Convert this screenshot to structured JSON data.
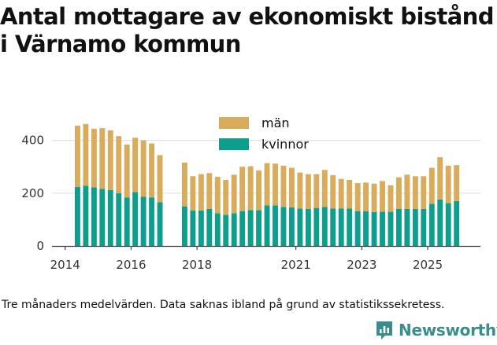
{
  "title": {
    "line1": "Antal mottagare av ekonomiskt bistånd",
    "line2": "i Värnamo kommun"
  },
  "caption": "Tre månaders medelvärden. Data saknas ibland på grund av statistikssekretess.",
  "brand": {
    "name": "Newsworthy"
  },
  "colors": {
    "man": "#d8ac5a",
    "kvinnor": "#0e9e8e",
    "grid": "#e3e3e3",
    "brand": "#3a8d8b"
  },
  "chart_data": {
    "type": "bar",
    "stacked": true,
    "title": "Antal mottagare av ekonomiskt bistånd i Värnamo kommun",
    "x_unit": "year (quarterly bars)",
    "xlim": [
      2013.6,
      2026.6
    ],
    "ylim": [
      0,
      500
    ],
    "y_ticks": [
      0,
      200,
      400
    ],
    "x_ticks": [
      "2014",
      "2016",
      "2018",
      "2021",
      "2023",
      "2025"
    ],
    "x_tick_positions": [
      2014,
      2016,
      2018,
      2021,
      2023,
      2025
    ],
    "legend_position": "top-center",
    "series": [
      {
        "name": "kvinnor",
        "color": "#0e9e8e",
        "x": [
          2014.375,
          2014.625,
          2014.875,
          2015.125,
          2015.375,
          2015.625,
          2015.875,
          2016.125,
          2016.375,
          2016.625,
          2016.875,
          2017.625,
          2017.875,
          2018.125,
          2018.375,
          2018.625,
          2018.875,
          2019.125,
          2019.375,
          2019.625,
          2019.875,
          2020.125,
          2020.375,
          2020.625,
          2020.875,
          2021.125,
          2021.375,
          2021.625,
          2021.875,
          2022.125,
          2022.375,
          2022.625,
          2022.875,
          2023.125,
          2023.375,
          2023.625,
          2023.875,
          2024.125,
          2024.375,
          2024.625,
          2024.875,
          2025.125,
          2025.375,
          2025.625,
          2025.875
        ],
        "values": [
          224,
          228,
          222,
          216,
          212,
          200,
          184,
          204,
          186,
          184,
          166,
          150,
          134,
          134,
          140,
          124,
          118,
          124,
          132,
          136,
          136,
          154,
          154,
          148,
          146,
          142,
          140,
          144,
          148,
          142,
          142,
          142,
          132,
          132,
          128,
          130,
          130,
          140,
          140,
          140,
          140,
          160,
          176,
          162,
          170
        ]
      },
      {
        "name": "män",
        "color": "#d8ac5a",
        "x": [
          2014.375,
          2014.625,
          2014.875,
          2015.125,
          2015.375,
          2015.625,
          2015.875,
          2016.125,
          2016.375,
          2016.625,
          2016.875,
          2017.625,
          2017.875,
          2018.125,
          2018.375,
          2018.625,
          2018.875,
          2019.125,
          2019.375,
          2019.625,
          2019.875,
          2020.125,
          2020.375,
          2020.625,
          2020.875,
          2021.125,
          2021.375,
          2021.625,
          2021.875,
          2022.125,
          2022.375,
          2022.625,
          2022.875,
          2023.125,
          2023.375,
          2023.625,
          2023.875,
          2024.125,
          2024.375,
          2024.625,
          2024.875,
          2025.125,
          2025.375,
          2025.625,
          2025.875
        ],
        "values": [
          232,
          234,
          222,
          230,
          226,
          216,
          200,
          206,
          214,
          204,
          178,
          166,
          130,
          138,
          136,
          138,
          132,
          146,
          168,
          166,
          150,
          160,
          158,
          156,
          150,
          136,
          132,
          128,
          140,
          126,
          112,
          108,
          106,
          108,
          108,
          116,
          100,
          120,
          130,
          124,
          124,
          136,
          160,
          142,
          136
        ]
      }
    ]
  }
}
